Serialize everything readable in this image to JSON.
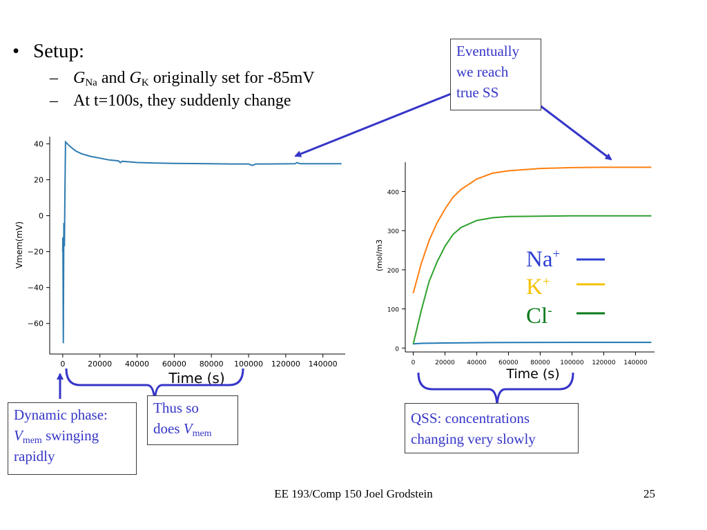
{
  "slide": {
    "bullet": {
      "marker": "•",
      "text": "Setup:"
    },
    "sub_items": [
      {
        "g1": "G",
        "g1_sub": "Na",
        "mid": " and ",
        "g2": "G",
        "g2_sub": "K",
        "rest": " originally set for -85mV"
      },
      {
        "text": "At t=100s, they suddenly change"
      }
    ],
    "callouts": {
      "eventually": [
        "Eventually",
        "we reach",
        "true SS"
      ],
      "dynamic": {
        "line1": "Dynamic phase:",
        "v": "V",
        "v_sub": "mem",
        "line2_rest": " swinging",
        "line3": "rapidly"
      },
      "thus": {
        "line1": "Thus so",
        "line2_pre": "does ",
        "v": "V",
        "v_sub": "mem"
      },
      "qss": [
        "QSS: concentrations",
        "changing very slowly"
      ]
    },
    "footer": {
      "text": "EE 193/Comp 150 Joel Grodstein",
      "page_number": "25"
    }
  },
  "colors": {
    "annotation": "#3535c8",
    "vmem_line": "#2e7bb0",
    "na_line": "#1f77b4",
    "k_line": "#ff7f0e",
    "cl_line": "#2ca02c",
    "legend_na": "#2b3fd1",
    "legend_k": "#f5c200",
    "legend_cl": "#0a7a1a"
  },
  "legend": [
    {
      "ion": "Na",
      "charge": "+"
    },
    {
      "ion": "K",
      "charge": "+"
    },
    {
      "ion": "Cl",
      "charge": "-"
    }
  ],
  "chart_data": [
    {
      "type": "line",
      "title": "",
      "xlabel": "Time (s)",
      "ylabel": "Vmem(mV)",
      "xlim": [
        -7000,
        152000
      ],
      "ylim": [
        -77,
        44
      ],
      "xticks": [
        0,
        20000,
        40000,
        60000,
        80000,
        100000,
        120000,
        140000
      ],
      "yticks": [
        40,
        20,
        0,
        -20,
        -40,
        -60
      ],
      "series": [
        {
          "name": "Vmem",
          "x": [
            0,
            100,
            300,
            600,
            900,
            1200,
            1500,
            2000,
            4000,
            7000,
            10000,
            15000,
            20000,
            25000,
            30000,
            31000,
            32000,
            35000,
            40000,
            50000,
            60000,
            70000,
            80000,
            90000,
            100000,
            102000,
            104000,
            110000,
            125000,
            126000,
            128000,
            140000,
            150000
          ],
          "y": [
            -20,
            -12,
            -71,
            -4,
            -17,
            15,
            41,
            40.5,
            38.5,
            36,
            34.5,
            33,
            32,
            31,
            30.5,
            29.5,
            30.3,
            30,
            29.6,
            29.3,
            29.1,
            29,
            28.9,
            28.8,
            28.8,
            28,
            28.8,
            28.8,
            28.9,
            29.5,
            28.9,
            28.9,
            28.9
          ]
        }
      ]
    },
    {
      "type": "line",
      "title": "",
      "xlabel": "Time (s)",
      "ylabel": "(mol/m3",
      "xlim": [
        -5000,
        152000
      ],
      "ylim": [
        -10,
        475
      ],
      "xticks": [
        0,
        20000,
        40000,
        60000,
        80000,
        100000,
        120000,
        140000
      ],
      "yticks": [
        0,
        100,
        200,
        300,
        400
      ],
      "series": [
        {
          "name": "Na",
          "x": [
            0,
            1000,
            5000,
            20000,
            50000,
            100000,
            150000
          ],
          "y": [
            10,
            11,
            12,
            13,
            14,
            14.5,
            14.5
          ]
        },
        {
          "name": "K",
          "x": [
            0,
            5000,
            10000,
            15000,
            20000,
            25000,
            30000,
            40000,
            50000,
            60000,
            80000,
            100000,
            120000,
            150000
          ],
          "y": [
            140,
            215,
            275,
            320,
            355,
            385,
            405,
            432,
            447,
            453,
            459,
            461,
            462,
            462
          ]
        },
        {
          "name": "Cl",
          "x": [
            0,
            5000,
            10000,
            15000,
            20000,
            25000,
            30000,
            40000,
            50000,
            60000,
            80000,
            100000,
            120000,
            150000
          ],
          "y": [
            10,
            95,
            170,
            220,
            260,
            290,
            308,
            326,
            333,
            336,
            337,
            338,
            338,
            338
          ]
        }
      ]
    }
  ]
}
